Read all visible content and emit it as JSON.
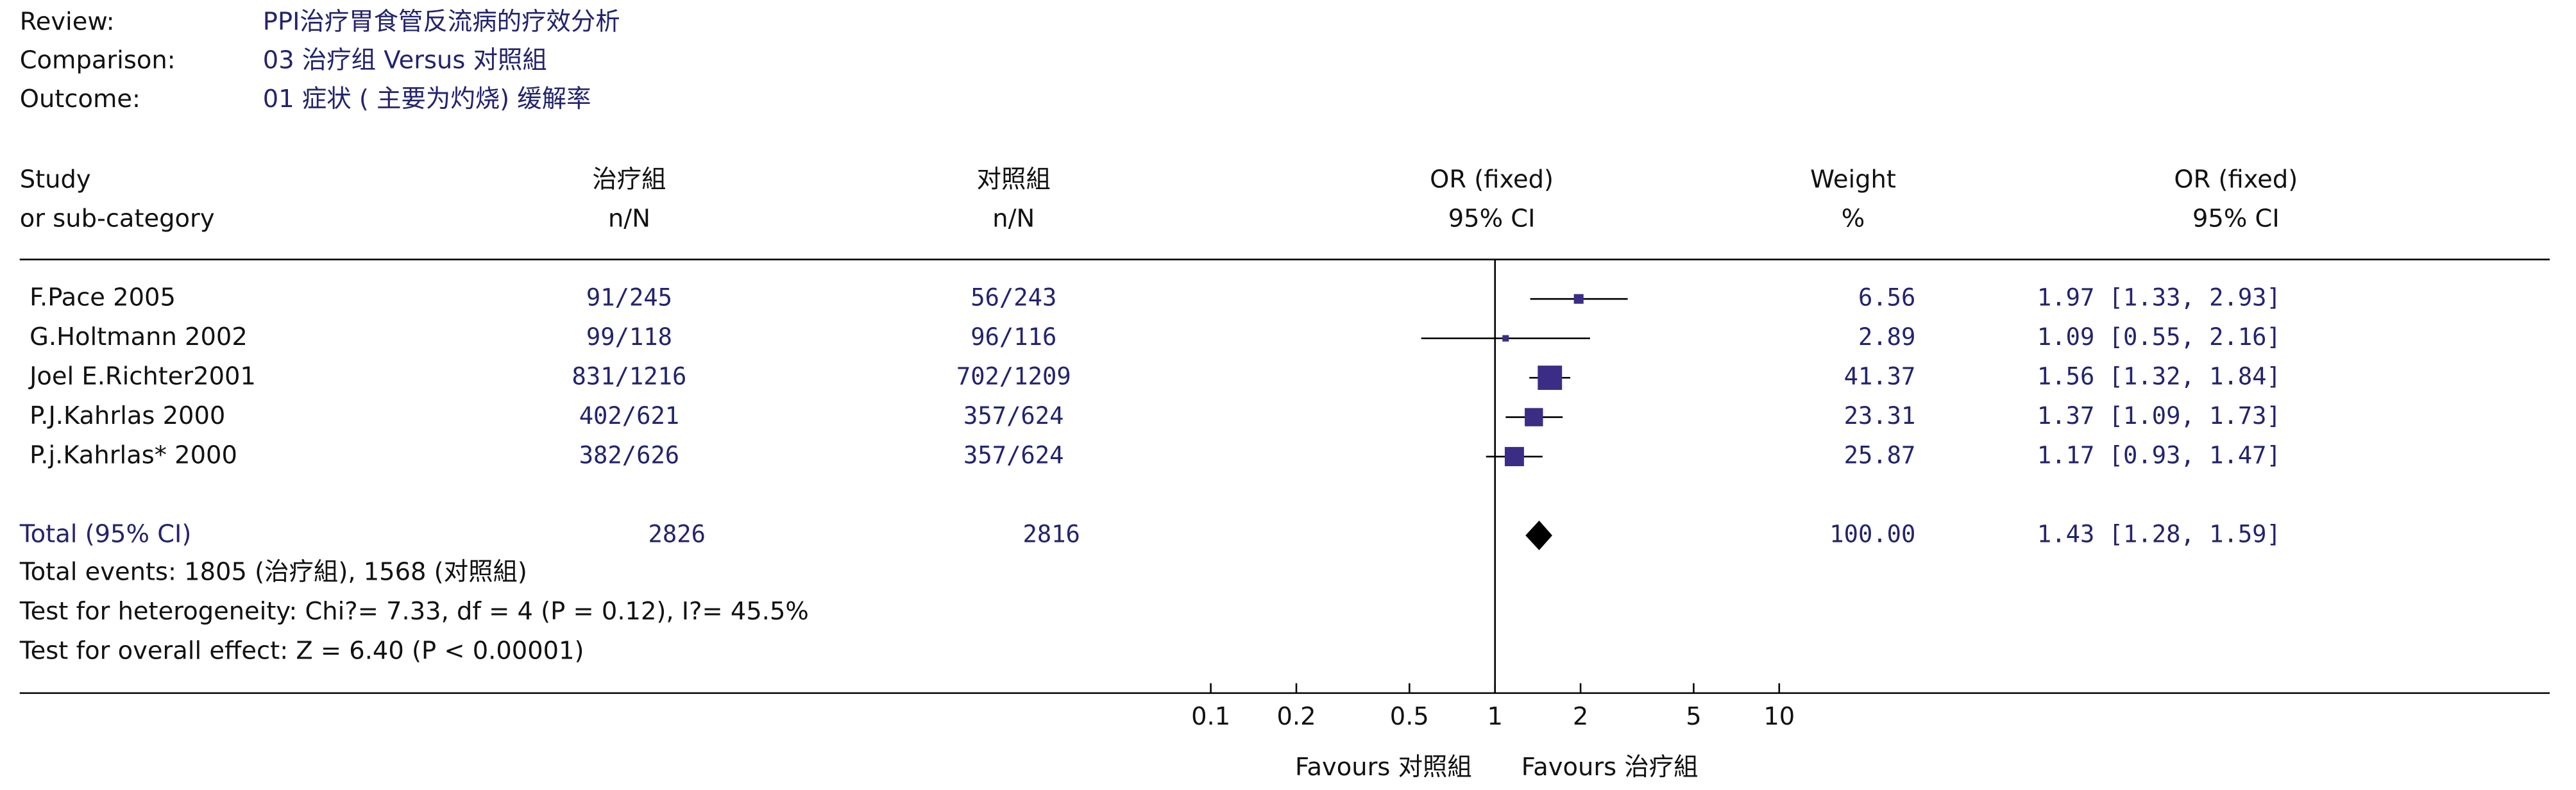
{
  "chart_data": {
    "type": "forest",
    "meta": [
      {
        "label": "Review:",
        "text": "PPI治疗胃食管反流病的疗效分析"
      },
      {
        "label": "Comparison:",
        "text": "03 治疗组 Versus 对照組"
      },
      {
        "label": "Outcome:",
        "text": "01 症状 ( 主要为灼烧) 缓解率"
      }
    ],
    "columns": {
      "study": [
        "Study",
        "or sub-category"
      ],
      "treatment": [
        "治疗組",
        "n/N"
      ],
      "control": [
        "对照組",
        "n/N"
      ],
      "plot": [
        "OR (fixed)",
        "95% CI"
      ],
      "weight": [
        "Weight",
        "%"
      ],
      "or": [
        "OR (fixed)",
        "95% CI"
      ]
    },
    "studies": [
      {
        "name": "F.Pace 2005",
        "treatment": "91/245",
        "control": "56/243",
        "weight": 6.56,
        "or": 1.97,
        "ci": [
          1.33,
          2.93
        ],
        "or_label": "1.97 [1.33, 2.93]"
      },
      {
        "name": "G.Holtmann 2002",
        "treatment": "99/118",
        "control": "96/116",
        "weight": 2.89,
        "or": 1.09,
        "ci": [
          0.55,
          2.16
        ],
        "or_label": "1.09 [0.55, 2.16]"
      },
      {
        "name": "Joel E.Richter2001",
        "treatment": "831/1216",
        "control": "702/1209",
        "weight": 41.37,
        "or": 1.56,
        "ci": [
          1.32,
          1.84
        ],
        "or_label": "1.56 [1.32, 1.84]"
      },
      {
        "name": "P.J.Kahrlas 2000",
        "treatment": "402/621",
        "control": "357/624",
        "weight": 23.31,
        "or": 1.37,
        "ci": [
          1.09,
          1.73
        ],
        "or_label": "1.37 [1.09, 1.73]"
      },
      {
        "name": "P.j.Kahrlas* 2000",
        "treatment": "382/626",
        "control": "357/624",
        "weight": 25.87,
        "or": 1.17,
        "ci": [
          0.93,
          1.47
        ],
        "or_label": "1.17 [0.93, 1.47]"
      }
    ],
    "total": {
      "name": "Total (95% CI)",
      "treatment": 2826,
      "control": 2816,
      "weight": 100,
      "weight_label": "100.00",
      "or": 1.43,
      "ci": [
        1.28,
        1.59
      ],
      "or_label": "1.43 [1.28, 1.59]"
    },
    "notes": [
      "Total events: 1805 (治疗組), 1568 (对照組)",
      "Test for heterogeneity: Chi?= 7.33, df = 4 (P = 0.12), I?= 45.5%",
      "Test for overall effect: Z = 6.40 (P < 0.00001)"
    ],
    "xlim": [
      0.1,
      10
    ],
    "xticks": [
      0.1,
      0.2,
      0.5,
      1,
      2,
      5,
      10
    ],
    "log_x": true,
    "favours": [
      "Favours 对照組",
      "Favours 治疗組"
    ],
    "color": "#3b2d86"
  }
}
